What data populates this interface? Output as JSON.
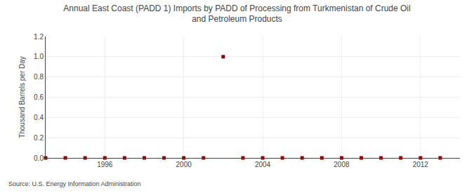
{
  "chart_data": {
    "type": "scatter",
    "title": "Annual East Coast (PADD 1) Imports by PADD of Processing from Turkmenistan of Crude Oil\nand Petroleum Products",
    "y_label": "Thousand Barrels per Day",
    "annotations": [
      "Source: U.S. Energy Information Administration"
    ],
    "x": [
      1993,
      1994,
      1995,
      1996,
      1997,
      1998,
      1999,
      2000,
      2001,
      2002,
      2003,
      2004,
      2005,
      2006,
      2007,
      2008,
      2009,
      2010,
      2011,
      2012,
      2013
    ],
    "values": [
      0.0,
      0.0,
      0.0,
      0.0,
      0.0,
      0.0,
      0.0,
      0.0,
      0.0,
      1.0,
      0.0,
      0.0,
      0.0,
      0.0,
      0.0,
      0.0,
      0.0,
      0.0,
      0.0,
      0.0,
      0.0
    ],
    "color": "#8b0000",
    "marker": "square",
    "xlim": [
      1993.0,
      2014.0
    ],
    "xticks": [
      1996,
      2000,
      2004,
      2008,
      2012
    ],
    "ylim": [
      0.0,
      1.2
    ],
    "yticks": [
      {
        "value": 0.0,
        "label": "0.0"
      },
      {
        "value": 0.2,
        "label": "0.2"
      },
      {
        "value": 0.4,
        "label": "0.4"
      },
      {
        "value": 0.6,
        "label": "0.6"
      },
      {
        "value": 0.8,
        "label": "0.8"
      },
      {
        "value": 1.0,
        "label": "1.0"
      },
      {
        "value": 1.2,
        "label": "1.2"
      }
    ],
    "grid": true
  }
}
